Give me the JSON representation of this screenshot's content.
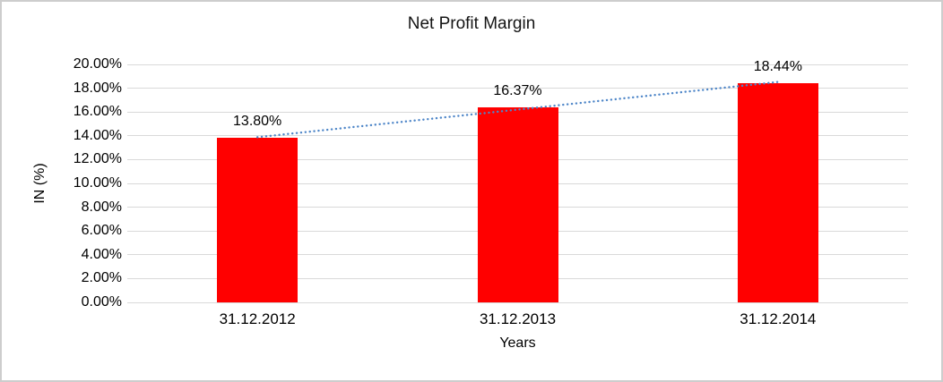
{
  "chart_data": {
    "type": "bar",
    "title": "Net Profit Margin",
    "categories": [
      "31.12.2012",
      "31.12.2013",
      "31.12.2014"
    ],
    "values": [
      13.8,
      16.37,
      18.44
    ],
    "data_labels": [
      "13.80%",
      "16.37%",
      "18.44%"
    ],
    "xlabel": "Years",
    "ylabel": "IN (%)",
    "ylim": [
      0,
      20
    ],
    "yticks": {
      "values": [
        0,
        2,
        4,
        6,
        8,
        10,
        12,
        14,
        16,
        18,
        20
      ],
      "labels": [
        "0.00%",
        "2.00%",
        "4.00%",
        "6.00%",
        "8.00%",
        "10.00%",
        "12.00%",
        "14.00%",
        "16.00%",
        "18.00%",
        "20.00%"
      ]
    },
    "bar_color": "#FF0000",
    "gridline_color": "#D9D9D9",
    "axis_line_color": "#D9D9D9",
    "text_color": "#000000",
    "trendline": {
      "type": "linear",
      "style": "dotted",
      "color": "#4E86C8"
    },
    "legend": "none",
    "grid": true
  }
}
